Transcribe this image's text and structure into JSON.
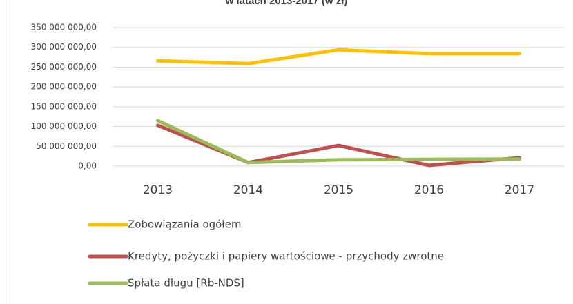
{
  "chart_data": {
    "type": "line",
    "title": "w latach 2013-2017 (w zł)",
    "categories": [
      "2013",
      "2014",
      "2015",
      "2016",
      "2017"
    ],
    "series": [
      {
        "name": "Zobowiązania ogółem",
        "color": "#ffc000",
        "values": [
          266000000,
          259000000,
          294000000,
          284000000,
          284000000
        ]
      },
      {
        "name": "Kredyty, pożyczki i papiery wartościowe - przychody zwrotne",
        "color": "#c0504d",
        "values": [
          103000000,
          9000000,
          52000000,
          2000000,
          21000000
        ]
      },
      {
        "name": "Spłata długu [Rb-NDS]",
        "color": "#9bbb59",
        "values": [
          115000000,
          9000000,
          16000000,
          17000000,
          18000000
        ]
      }
    ],
    "ylim": [
      0,
      350000000
    ],
    "yticks": [
      {
        "value": 0,
        "label": "0,00"
      },
      {
        "value": 50000000,
        "label": "50 000 000,00"
      },
      {
        "value": 100000000,
        "label": "100 000 000,00"
      },
      {
        "value": 150000000,
        "label": "150 000 000,00"
      },
      {
        "value": 200000000,
        "label": "200 000 000,00"
      },
      {
        "value": 250000000,
        "label": "250 000 000,00"
      },
      {
        "value": 300000000,
        "label": "300 000 000,00"
      },
      {
        "value": 350000000,
        "label": "350 000 000,00"
      }
    ],
    "grid": true,
    "legend": "bottom"
  }
}
